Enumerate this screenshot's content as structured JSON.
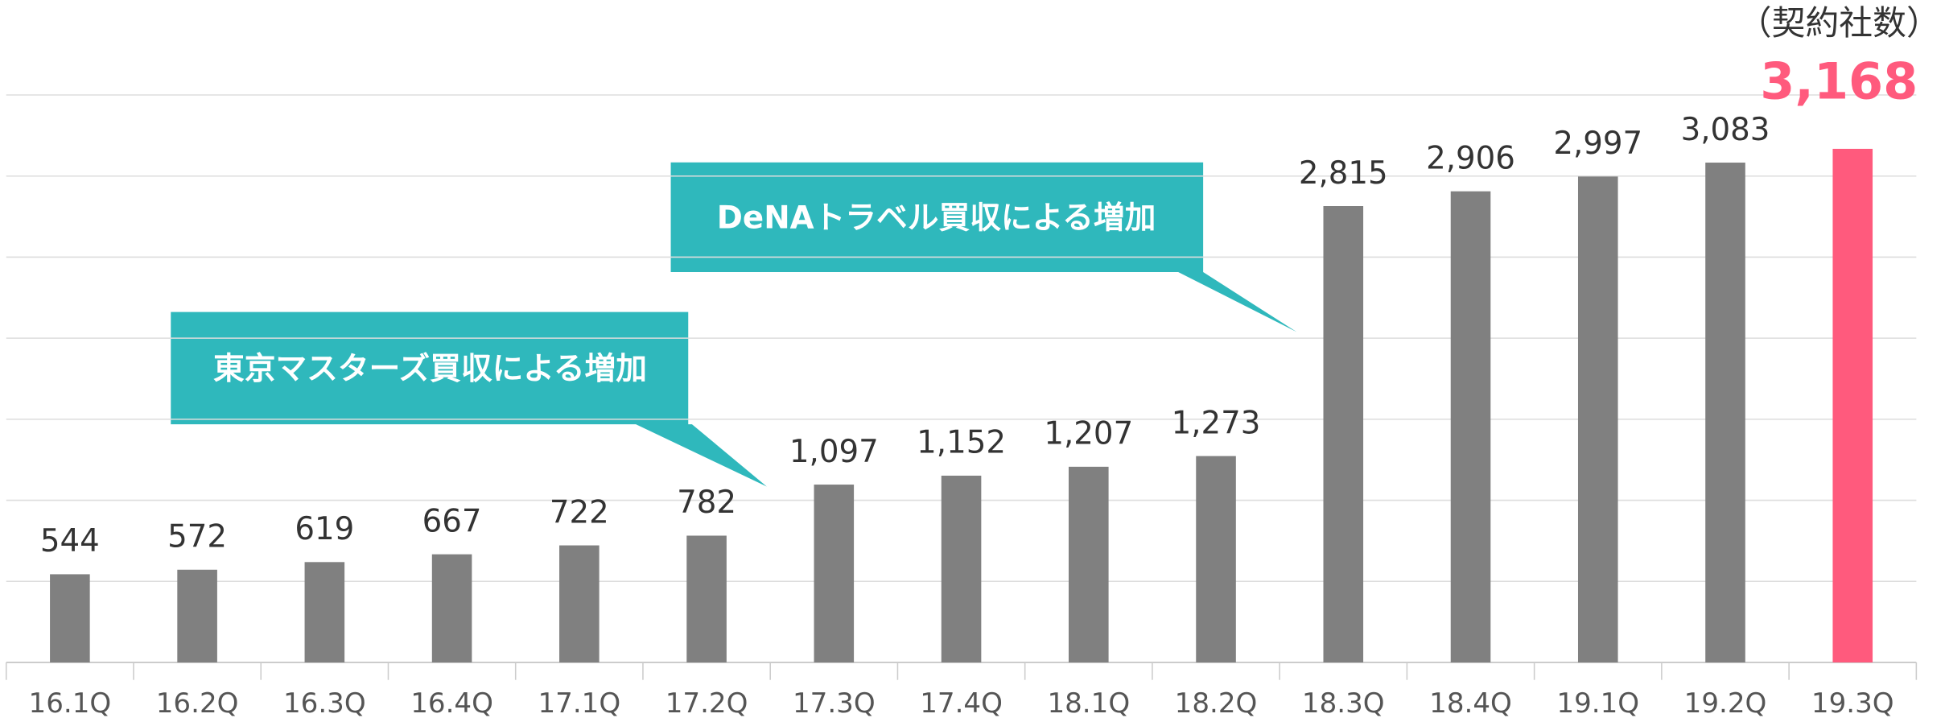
{
  "chart_data": {
    "type": "bar",
    "unit_label": "（契約社数）",
    "categories": [
      "16.1Q",
      "16.2Q",
      "16.3Q",
      "16.4Q",
      "17.1Q",
      "17.2Q",
      "17.3Q",
      "17.4Q",
      "18.1Q",
      "18.2Q",
      "18.3Q",
      "18.4Q",
      "19.1Q",
      "19.2Q",
      "19.3Q"
    ],
    "values": [
      544,
      572,
      619,
      667,
      722,
      782,
      1097,
      1152,
      1207,
      1273,
      2815,
      2906,
      2997,
      3083,
      3168
    ],
    "value_labels": [
      "544",
      "572",
      "619",
      "667",
      "722",
      "782",
      "1,097",
      "1,152",
      "1,207",
      "1,273",
      "2,815",
      "2,906",
      "2,997",
      "3,083",
      "3,168"
    ],
    "colors": [
      "#808080",
      "#808080",
      "#808080",
      "#808080",
      "#808080",
      "#808080",
      "#808080",
      "#808080",
      "#808080",
      "#808080",
      "#808080",
      "#808080",
      "#808080",
      "#808080",
      "#ff5a7d"
    ],
    "ylim": [
      0,
      3500
    ],
    "yticks": [
      0,
      500,
      1000,
      1500,
      2000,
      2500,
      3000,
      3500
    ],
    "grid": true,
    "annotations": [
      {
        "text": "東京マスターズ買収による増加",
        "color": "#2fb8bc"
      },
      {
        "text": "DeNAトラベル買収による増加",
        "color": "#2fb8bc"
      }
    ]
  }
}
